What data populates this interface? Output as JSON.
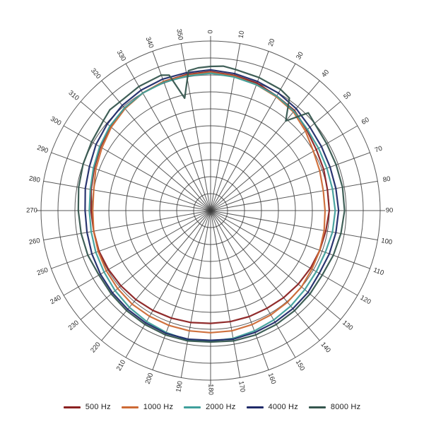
{
  "page": {
    "background": "#ffffff"
  },
  "chart_data": {
    "type": "polar-line",
    "title": "",
    "orientation": {
      "zero_position": "top",
      "direction": "clockwise"
    },
    "angle_tick_step_degrees": 10,
    "angle_tick_labels": [
      "0",
      "10",
      "20",
      "30",
      "40",
      "50",
      "60",
      "70",
      "80",
      "90",
      "100",
      "110",
      "120",
      "130",
      "140",
      "150",
      "160",
      "170",
      "180",
      "190",
      "200",
      "210",
      "220",
      "230",
      "240",
      "250",
      "260",
      "270",
      "280",
      "290",
      "300",
      "310",
      "320",
      "330",
      "340",
      "350"
    ],
    "rings": 10,
    "radial_axis": {
      "min": 0,
      "max": 1,
      "tick_labels_visible": false
    },
    "grid_color": "#3d3d3d",
    "label_color": "#2b2b2b",
    "legend": {
      "position": "bottom"
    },
    "series": [
      {
        "name": "500 Hz",
        "color": "#8b2121",
        "points": [
          [
            0,
            0.82
          ],
          [
            10,
            0.81
          ],
          [
            20,
            0.8
          ],
          [
            30,
            0.78
          ],
          [
            40,
            0.77
          ],
          [
            50,
            0.74
          ],
          [
            60,
            0.72
          ],
          [
            70,
            0.71
          ],
          [
            80,
            0.7
          ],
          [
            90,
            0.7
          ],
          [
            100,
            0.69
          ],
          [
            110,
            0.685
          ],
          [
            120,
            0.68
          ],
          [
            130,
            0.675
          ],
          [
            140,
            0.67
          ],
          [
            150,
            0.665
          ],
          [
            160,
            0.665
          ],
          [
            170,
            0.665
          ],
          [
            180,
            0.665
          ],
          [
            190,
            0.67
          ],
          [
            200,
            0.675
          ],
          [
            210,
            0.68
          ],
          [
            220,
            0.685
          ],
          [
            230,
            0.69
          ],
          [
            240,
            0.695
          ],
          [
            250,
            0.7
          ],
          [
            260,
            0.7
          ],
          [
            270,
            0.705
          ],
          [
            280,
            0.715
          ],
          [
            290,
            0.73
          ],
          [
            300,
            0.75
          ],
          [
            310,
            0.77
          ],
          [
            320,
            0.79
          ],
          [
            330,
            0.8
          ],
          [
            340,
            0.81
          ],
          [
            350,
            0.815
          ]
        ]
      },
      {
        "name": "1000 Hz",
        "color": "#cd6a35",
        "points": [
          [
            0,
            0.815
          ],
          [
            10,
            0.805
          ],
          [
            20,
            0.79
          ],
          [
            30,
            0.775
          ],
          [
            40,
            0.76
          ],
          [
            50,
            0.73
          ],
          [
            60,
            0.7
          ],
          [
            70,
            0.685
          ],
          [
            80,
            0.675
          ],
          [
            90,
            0.675
          ],
          [
            100,
            0.68
          ],
          [
            110,
            0.685
          ],
          [
            120,
            0.69
          ],
          [
            130,
            0.7
          ],
          [
            140,
            0.705
          ],
          [
            150,
            0.71
          ],
          [
            160,
            0.715
          ],
          [
            170,
            0.72
          ],
          [
            180,
            0.72
          ],
          [
            190,
            0.72
          ],
          [
            200,
            0.72
          ],
          [
            210,
            0.72
          ],
          [
            220,
            0.72
          ],
          [
            230,
            0.715
          ],
          [
            240,
            0.71
          ],
          [
            250,
            0.705
          ],
          [
            260,
            0.7
          ],
          [
            270,
            0.695
          ],
          [
            280,
            0.7
          ],
          [
            290,
            0.72
          ],
          [
            300,
            0.74
          ],
          [
            310,
            0.765
          ],
          [
            320,
            0.785
          ],
          [
            330,
            0.8
          ],
          [
            340,
            0.81
          ],
          [
            350,
            0.81
          ]
        ]
      },
      {
        "name": "2000 Hz",
        "color": "#3f9f9b",
        "points": [
          [
            0,
            0.81
          ],
          [
            10,
            0.8
          ],
          [
            20,
            0.79
          ],
          [
            30,
            0.78
          ],
          [
            40,
            0.765
          ],
          [
            50,
            0.745
          ],
          [
            60,
            0.735
          ],
          [
            70,
            0.73
          ],
          [
            80,
            0.73
          ],
          [
            90,
            0.735
          ],
          [
            100,
            0.73
          ],
          [
            110,
            0.72
          ],
          [
            120,
            0.72
          ],
          [
            130,
            0.725
          ],
          [
            140,
            0.735
          ],
          [
            150,
            0.745
          ],
          [
            160,
            0.755
          ],
          [
            170,
            0.765
          ],
          [
            180,
            0.77
          ],
          [
            190,
            0.775
          ],
          [
            200,
            0.765
          ],
          [
            210,
            0.755
          ],
          [
            220,
            0.745
          ],
          [
            230,
            0.735
          ],
          [
            240,
            0.725
          ],
          [
            250,
            0.72
          ],
          [
            260,
            0.715
          ],
          [
            270,
            0.715
          ],
          [
            280,
            0.72
          ],
          [
            290,
            0.735
          ],
          [
            300,
            0.755
          ],
          [
            310,
            0.775
          ],
          [
            320,
            0.79
          ],
          [
            330,
            0.8
          ],
          [
            340,
            0.805
          ],
          [
            350,
            0.805
          ]
        ]
      },
      {
        "name": "4000 Hz",
        "color": "#1f2a68",
        "points": [
          [
            0,
            0.83
          ],
          [
            10,
            0.82
          ],
          [
            20,
            0.81
          ],
          [
            30,
            0.8
          ],
          [
            40,
            0.785
          ],
          [
            50,
            0.765
          ],
          [
            60,
            0.755
          ],
          [
            70,
            0.75
          ],
          [
            80,
            0.75
          ],
          [
            90,
            0.755
          ],
          [
            100,
            0.75
          ],
          [
            110,
            0.745
          ],
          [
            120,
            0.74
          ],
          [
            130,
            0.75
          ],
          [
            140,
            0.755
          ],
          [
            150,
            0.76
          ],
          [
            160,
            0.765
          ],
          [
            170,
            0.77
          ],
          [
            180,
            0.765
          ],
          [
            190,
            0.77
          ],
          [
            200,
            0.77
          ],
          [
            210,
            0.765
          ],
          [
            220,
            0.76
          ],
          [
            230,
            0.755
          ],
          [
            240,
            0.75
          ],
          [
            250,
            0.745
          ],
          [
            260,
            0.74
          ],
          [
            270,
            0.74
          ],
          [
            280,
            0.75
          ],
          [
            290,
            0.76
          ],
          [
            300,
            0.78
          ],
          [
            310,
            0.795
          ],
          [
            320,
            0.81
          ],
          [
            330,
            0.82
          ],
          [
            340,
            0.825
          ],
          [
            350,
            0.825
          ]
        ]
      },
      {
        "name": "8000 Hz",
        "color": "#35564e",
        "points": [
          [
            0,
            0.85
          ],
          [
            5,
            0.855
          ],
          [
            10,
            0.845
          ],
          [
            20,
            0.835
          ],
          [
            30,
            0.825
          ],
          [
            35,
            0.81
          ],
          [
            40,
            0.69
          ],
          [
            45,
            0.815
          ],
          [
            50,
            0.8
          ],
          [
            60,
            0.79
          ],
          [
            70,
            0.788
          ],
          [
            80,
            0.79
          ],
          [
            90,
            0.79
          ],
          [
            100,
            0.78
          ],
          [
            110,
            0.77
          ],
          [
            120,
            0.76
          ],
          [
            130,
            0.765
          ],
          [
            140,
            0.77
          ],
          [
            150,
            0.775
          ],
          [
            160,
            0.78
          ],
          [
            170,
            0.78
          ],
          [
            180,
            0.775
          ],
          [
            190,
            0.78
          ],
          [
            200,
            0.78
          ],
          [
            210,
            0.775
          ],
          [
            220,
            0.77
          ],
          [
            230,
            0.765
          ],
          [
            240,
            0.76
          ],
          [
            250,
            0.77
          ],
          [
            260,
            0.775
          ],
          [
            270,
            0.78
          ],
          [
            280,
            0.79
          ],
          [
            290,
            0.8
          ],
          [
            300,
            0.81
          ],
          [
            310,
            0.825
          ],
          [
            315,
            0.84
          ],
          [
            320,
            0.835
          ],
          [
            330,
            0.845
          ],
          [
            340,
            0.85
          ],
          [
            343,
            0.835
          ],
          [
            347,
            0.68
          ],
          [
            351,
            0.835
          ],
          [
            355,
            0.845
          ]
        ]
      }
    ]
  }
}
